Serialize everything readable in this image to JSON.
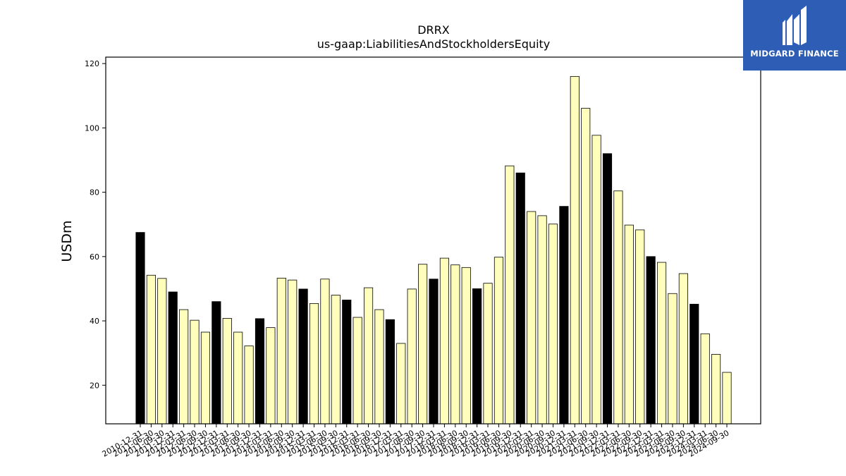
{
  "brand": {
    "name": "MIDGARD FINANCE",
    "background_color": "#2d5db4",
    "mark_icon": "midgard-mark-icon"
  },
  "chart_data": {
    "type": "bar",
    "title": "DRRX",
    "subtitle": "us-gaap:LiabilitiesAndStockholdersEquity",
    "xlabel": "",
    "ylabel": "USDm",
    "ylim": [
      8,
      122
    ],
    "yticks": [
      20,
      40,
      60,
      80,
      100,
      120
    ],
    "grid": false,
    "colors": {
      "annual": "#000000",
      "quarterly": "#ffffbb"
    },
    "categories": [
      "2010-12-31",
      "2011-06-30",
      "2011-09-30",
      "2011-12-31",
      "2012-03-31",
      "2012-06-30",
      "2012-09-30",
      "2012-12-31",
      "2013-03-31",
      "2013-06-30",
      "2013-09-30",
      "2013-12-31",
      "2014-03-31",
      "2014-06-30",
      "2014-09-30",
      "2014-12-31",
      "2015-03-31",
      "2015-06-30",
      "2015-09-30",
      "2015-12-31",
      "2016-03-31",
      "2016-06-30",
      "2016-09-30",
      "2016-12-31",
      "2017-03-31",
      "2017-06-30",
      "2017-09-30",
      "2017-12-31",
      "2018-03-31",
      "2018-06-30",
      "2018-09-30",
      "2018-12-31",
      "2019-03-31",
      "2019-06-30",
      "2019-09-30",
      "2019-12-31",
      "2020-03-31",
      "2020-06-30",
      "2020-09-30",
      "2020-12-31",
      "2021-03-31",
      "2021-06-30",
      "2021-09-30",
      "2021-12-31",
      "2022-03-31",
      "2022-06-30",
      "2022-09-30",
      "2022-12-31",
      "2023-03-31",
      "2023-06-30",
      "2023-09-30",
      "2023-12-31",
      "2024-03-31",
      "2024-06-30",
      "2024-09-30"
    ],
    "values": [
      67.5,
      54.2,
      53.2,
      49.0,
      43.5,
      40.2,
      36.5,
      46.0,
      40.8,
      36.5,
      32.2,
      40.7,
      37.9,
      53.3,
      52.7,
      49.9,
      45.4,
      53.0,
      48.0,
      46.5,
      41.1,
      50.3,
      43.5,
      40.4,
      33.0,
      49.9,
      57.6,
      53.0,
      59.5,
      57.4,
      56.6,
      50.0,
      51.7,
      59.8,
      88.2,
      86.0,
      74.0,
      72.7,
      70.1,
      75.6,
      116.0,
      106.1,
      97.7,
      92.0,
      80.4,
      69.8,
      68.3,
      60.0,
      58.2,
      48.5,
      54.7,
      45.2,
      36.0,
      29.6,
      24.0
    ],
    "annual": [
      true,
      false,
      false,
      true,
      false,
      false,
      false,
      true,
      false,
      false,
      false,
      true,
      false,
      false,
      false,
      true,
      false,
      false,
      false,
      true,
      false,
      false,
      false,
      true,
      false,
      false,
      false,
      true,
      false,
      false,
      false,
      true,
      false,
      false,
      false,
      true,
      false,
      false,
      false,
      true,
      false,
      false,
      false,
      true,
      false,
      false,
      false,
      true,
      false,
      false,
      false,
      true,
      false,
      false,
      false
    ]
  }
}
